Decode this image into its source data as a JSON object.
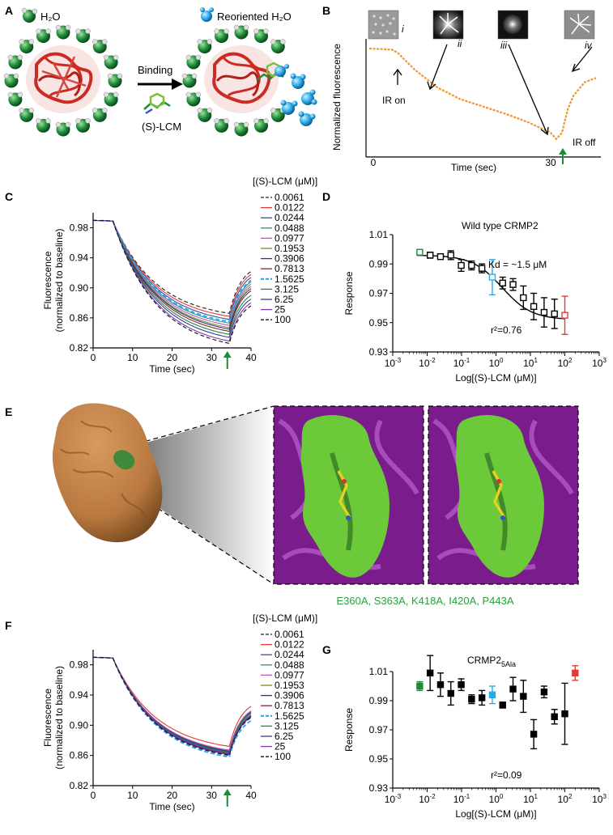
{
  "panels": {
    "A": {
      "label": "A",
      "legend_water": "H₂O",
      "legend_reoriented": "Reoriented H₂O",
      "arrow_label": "Binding",
      "ligand_label": "(S)-LCM",
      "colors": {
        "water": "#1e8a3a",
        "reoriented": "#2aa9e8",
        "protein": "#cc2b23"
      }
    },
    "B": {
      "label": "B",
      "ylabel": "Normalized fluorescence",
      "xlabel": "Time (sec)",
      "tick_0": "0",
      "tick_30": "30",
      "ir_on": "IR on",
      "ir_off": "IR off",
      "insets": [
        "i",
        "ii",
        "iii",
        "iv"
      ],
      "trace_color": "#f0962a"
    },
    "C": {
      "label": "C",
      "legend_title": "[(S)-LCM (μM)]",
      "ylabel_1": "Fluorescence",
      "ylabel_2": "(normalized to baseline)",
      "xlabel": "Time (sec)"
    },
    "D": {
      "label": "D",
      "title": "Wild type CRMP2",
      "ylabel": "Response",
      "xlabel": "Log[(S)-LCM (μM)]",
      "kd": "Kd = ~1.5 μM",
      "r2": "r²=0.76"
    },
    "E": {
      "label": "E",
      "mutations": "E360A, S363A, K418A, I420A, P443A",
      "colors": {
        "surface": "#b8783f",
        "pocket": "#6cc93a",
        "ribbon": "#7a1c8c",
        "mutation_text": "#27a03c"
      }
    },
    "F": {
      "label": "F",
      "legend_title": "[(S)-LCM (μM)]",
      "ylabel_1": "Fluorescence",
      "ylabel_2": "(normalized to baseline)",
      "xlabel": "Time (sec)"
    },
    "G": {
      "label": "G",
      "title": "CRMP2",
      "title_sub": "5Ala",
      "ylabel": "Response",
      "xlabel": "Log[(S)-LCM (μM)]",
      "r2": "r²=0.09"
    }
  },
  "chart_data": [
    {
      "panel": "B",
      "type": "line",
      "xlabel": "Time (sec)",
      "ylabel": "Normalized fluorescence",
      "x_ticks": [
        0,
        30
      ],
      "series": [
        {
          "x": [
            0,
            4,
            5,
            8,
            12,
            16,
            20,
            24,
            28,
            32,
            33,
            34,
            35,
            36,
            38,
            40
          ],
          "y": [
            1.0,
            0.99,
            0.96,
            0.8,
            0.63,
            0.52,
            0.45,
            0.38,
            0.3,
            0.2,
            0.14,
            0.2,
            0.42,
            0.55,
            0.68,
            0.72
          ]
        }
      ],
      "annotations": [
        "IR on",
        "IR off",
        "i",
        "ii",
        "iii",
        "iv"
      ]
    },
    {
      "panel": "C",
      "type": "line",
      "xlabel": "Time (sec)",
      "ylabel": "Fluorescence (normalized to baseline)",
      "xlim": [
        0,
        40
      ],
      "ylim": [
        0.82,
        1.0
      ],
      "x_ticks": [
        0,
        10,
        20,
        30,
        40
      ],
      "y_ticks": [
        0.82,
        0.86,
        0.9,
        0.94,
        0.98
      ],
      "legend_title": "[(S)-LCM (μM)]",
      "series": [
        {
          "name": "0.0061",
          "color": "#222222",
          "dash": true,
          "min": 0.866,
          "end": 0.922
        },
        {
          "name": "0.0122",
          "color": "#e33b35",
          "min": 0.862,
          "end": 0.918
        },
        {
          "name": "0.0244",
          "color": "#3a4aa8",
          "min": 0.858,
          "end": 0.914
        },
        {
          "name": "0.0488",
          "color": "#2b8f8c",
          "min": 0.853,
          "end": 0.908
        },
        {
          "name": "0.0977",
          "color": "#b05ab8",
          "min": 0.85,
          "end": 0.905
        },
        {
          "name": "0.1953",
          "color": "#7c8b22",
          "min": 0.847,
          "end": 0.902
        },
        {
          "name": "0.3906",
          "color": "#223a84",
          "min": 0.845,
          "end": 0.899
        },
        {
          "name": "0.7813",
          "color": "#8b2335",
          "min": 0.842,
          "end": 0.896
        },
        {
          "name": "1.5625",
          "color": "#2aa9e8",
          "dash": true,
          "bold": true,
          "min": 0.855,
          "end": 0.91
        },
        {
          "name": "3.125",
          "color": "#1e8a3a",
          "min": 0.838,
          "end": 0.89
        },
        {
          "name": "6.25",
          "color": "#3a3a98",
          "min": 0.834,
          "end": 0.885
        },
        {
          "name": "25",
          "color": "#7a3aa8",
          "min": 0.829,
          "end": 0.88
        },
        {
          "name": "100",
          "color": "#111111",
          "dash": true,
          "min": 0.826,
          "end": 0.876
        }
      ]
    },
    {
      "panel": "D",
      "type": "scatter",
      "xlabel": "Log[(S)-LCM (μM)]",
      "ylabel": "Response",
      "xscale": "log",
      "xlim": [
        0.001,
        1000
      ],
      "ylim": [
        0.93,
        1.01
      ],
      "y_ticks": [
        0.93,
        0.95,
        0.97,
        0.99,
        1.01
      ],
      "x_tick_labels": [
        "10-3",
        "10-2",
        "10-1",
        "100",
        "101",
        "102",
        "103"
      ],
      "points": [
        {
          "x": 0.0061,
          "y": 0.998,
          "err": 0.001,
          "color": "#1e8a3a"
        },
        {
          "x": 0.0122,
          "y": 0.996,
          "err": 0.002,
          "color": "#000000"
        },
        {
          "x": 0.0244,
          "y": 0.995,
          "err": 0.001,
          "color": "#000000"
        },
        {
          "x": 0.0488,
          "y": 0.996,
          "err": 0.003,
          "color": "#000000"
        },
        {
          "x": 0.0977,
          "y": 0.989,
          "err": 0.004,
          "color": "#000000"
        },
        {
          "x": 0.1953,
          "y": 0.989,
          "err": 0.003,
          "color": "#000000"
        },
        {
          "x": 0.3906,
          "y": 0.987,
          "err": 0.003,
          "color": "#000000"
        },
        {
          "x": 0.7813,
          "y": 0.981,
          "err": 0.012,
          "color": "#2aa9e8"
        },
        {
          "x": 1.5625,
          "y": 0.977,
          "err": 0.004,
          "color": "#000000"
        },
        {
          "x": 3.125,
          "y": 0.976,
          "err": 0.004,
          "color": "#000000"
        },
        {
          "x": 6.25,
          "y": 0.967,
          "err": 0.008,
          "color": "#000000"
        },
        {
          "x": 12.5,
          "y": 0.961,
          "err": 0.009,
          "color": "#000000"
        },
        {
          "x": 25,
          "y": 0.957,
          "err": 0.01,
          "color": "#000000"
        },
        {
          "x": 50,
          "y": 0.956,
          "err": 0.01,
          "color": "#000000"
        },
        {
          "x": 100,
          "y": 0.955,
          "err": 0.013,
          "color": "#e33b35"
        }
      ],
      "fit": {
        "type": "sigmoid",
        "top": 0.996,
        "bottom": 0.952,
        "kd": 1.5
      }
    },
    {
      "panel": "F",
      "type": "line",
      "xlabel": "Time (sec)",
      "ylabel": "Fluorescence (normalized to baseline)",
      "xlim": [
        0,
        40
      ],
      "ylim": [
        0.82,
        1.0
      ],
      "x_ticks": [
        0,
        10,
        20,
        30,
        40
      ],
      "y_ticks": [
        0.82,
        0.86,
        0.9,
        0.94,
        0.98
      ],
      "legend_title": "[(S)-LCM (μM)]",
      "series": [
        {
          "name": "0.0061",
          "color": "#222222",
          "dash": true,
          "min": 0.858,
          "end": 0.912
        },
        {
          "name": "0.0122",
          "color": "#e33b35",
          "min": 0.872,
          "end": 0.925
        },
        {
          "name": "0.0244",
          "color": "#3a4aa8",
          "min": 0.866,
          "end": 0.918
        },
        {
          "name": "0.0488",
          "color": "#2b8f8c",
          "min": 0.864,
          "end": 0.916
        },
        {
          "name": "0.0977",
          "color": "#b05ab8",
          "min": 0.867,
          "end": 0.919
        },
        {
          "name": "0.1953",
          "color": "#7c8b22",
          "min": 0.863,
          "end": 0.914
        },
        {
          "name": "0.3906",
          "color": "#223a84",
          "min": 0.865,
          "end": 0.916
        },
        {
          "name": "0.7813",
          "color": "#8b2335",
          "min": 0.862,
          "end": 0.912
        },
        {
          "name": "1.5625",
          "color": "#2aa9e8",
          "dash": true,
          "bold": true,
          "min": 0.858,
          "end": 0.906
        },
        {
          "name": "3.125",
          "color": "#1e8a3a",
          "min": 0.864,
          "end": 0.917
        },
        {
          "name": "6.25",
          "color": "#3a3a98",
          "min": 0.861,
          "end": 0.911
        },
        {
          "name": "25",
          "color": "#7a3aa8",
          "min": 0.863,
          "end": 0.913
        },
        {
          "name": "100",
          "color": "#111111",
          "dash": true,
          "min": 0.86,
          "end": 0.91
        }
      ]
    },
    {
      "panel": "G",
      "type": "scatter",
      "xlabel": "Log[(S)-LCM (μM)]",
      "ylabel": "Response",
      "xscale": "log",
      "xlim": [
        0.001,
        1000
      ],
      "ylim": [
        0.93,
        1.01
      ],
      "y_ticks": [
        0.93,
        0.95,
        0.97,
        0.99,
        1.01
      ],
      "x_tick_labels": [
        "10-3",
        "10-2",
        "10-1",
        "100",
        "101",
        "102",
        "103"
      ],
      "points": [
        {
          "x": 0.0061,
          "y": 1.0,
          "err": 0.003,
          "color": "#1e8a3a"
        },
        {
          "x": 0.0122,
          "y": 1.009,
          "err": 0.012,
          "color": "#000000"
        },
        {
          "x": 0.0244,
          "y": 1.001,
          "err": 0.008,
          "color": "#000000"
        },
        {
          "x": 0.0488,
          "y": 0.995,
          "err": 0.008,
          "color": "#000000"
        },
        {
          "x": 0.0977,
          "y": 1.001,
          "err": 0.004,
          "color": "#000000"
        },
        {
          "x": 0.1953,
          "y": 0.991,
          "err": 0.003,
          "color": "#000000"
        },
        {
          "x": 0.3906,
          "y": 0.992,
          "err": 0.005,
          "color": "#000000"
        },
        {
          "x": 0.7813,
          "y": 0.994,
          "err": 0.006,
          "color": "#2aa9e8"
        },
        {
          "x": 1.5625,
          "y": 0.987,
          "err": 0.002,
          "color": "#000000"
        },
        {
          "x": 3.125,
          "y": 0.998,
          "err": 0.008,
          "color": "#000000"
        },
        {
          "x": 6.25,
          "y": 0.993,
          "err": 0.011,
          "color": "#000000"
        },
        {
          "x": 12.5,
          "y": 0.967,
          "err": 0.01,
          "color": "#000000"
        },
        {
          "x": 25,
          "y": 0.996,
          "err": 0.004,
          "color": "#000000"
        },
        {
          "x": 50,
          "y": 0.979,
          "err": 0.005,
          "color": "#000000"
        },
        {
          "x": 100,
          "y": 0.981,
          "err": 0.021,
          "color": "#000000"
        },
        {
          "x": 200,
          "y": 1.009,
          "err": 0.005,
          "color": "#e33b35"
        }
      ]
    }
  ]
}
